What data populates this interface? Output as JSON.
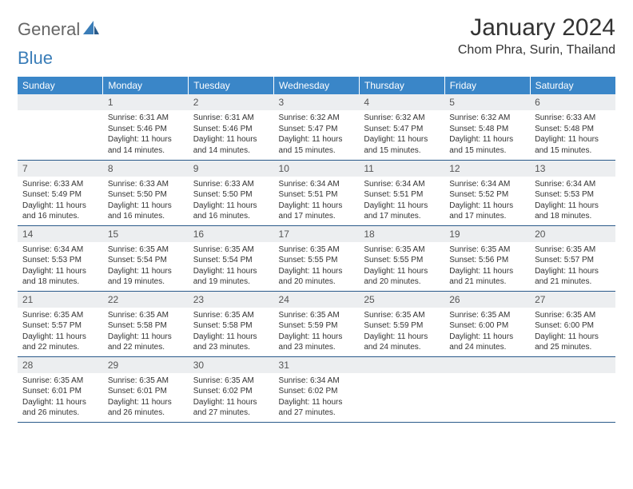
{
  "logo": {
    "general": "General",
    "blue": "Blue"
  },
  "title": "January 2024",
  "location": "Chom Phra, Surin, Thailand",
  "colors": {
    "header_bg": "#3a86c8",
    "header_text": "#ffffff",
    "daynum_bg": "#eceef0",
    "border": "#2a5a8a",
    "logo_blue": "#3a7db8"
  },
  "weekdays": [
    "Sunday",
    "Monday",
    "Tuesday",
    "Wednesday",
    "Thursday",
    "Friday",
    "Saturday"
  ],
  "weeks": [
    [
      null,
      {
        "n": "1",
        "sunrise": "Sunrise: 6:31 AM",
        "sunset": "Sunset: 5:46 PM",
        "daylight": "Daylight: 11 hours and 14 minutes."
      },
      {
        "n": "2",
        "sunrise": "Sunrise: 6:31 AM",
        "sunset": "Sunset: 5:46 PM",
        "daylight": "Daylight: 11 hours and 14 minutes."
      },
      {
        "n": "3",
        "sunrise": "Sunrise: 6:32 AM",
        "sunset": "Sunset: 5:47 PM",
        "daylight": "Daylight: 11 hours and 15 minutes."
      },
      {
        "n": "4",
        "sunrise": "Sunrise: 6:32 AM",
        "sunset": "Sunset: 5:47 PM",
        "daylight": "Daylight: 11 hours and 15 minutes."
      },
      {
        "n": "5",
        "sunrise": "Sunrise: 6:32 AM",
        "sunset": "Sunset: 5:48 PM",
        "daylight": "Daylight: 11 hours and 15 minutes."
      },
      {
        "n": "6",
        "sunrise": "Sunrise: 6:33 AM",
        "sunset": "Sunset: 5:48 PM",
        "daylight": "Daylight: 11 hours and 15 minutes."
      }
    ],
    [
      {
        "n": "7",
        "sunrise": "Sunrise: 6:33 AM",
        "sunset": "Sunset: 5:49 PM",
        "daylight": "Daylight: 11 hours and 16 minutes."
      },
      {
        "n": "8",
        "sunrise": "Sunrise: 6:33 AM",
        "sunset": "Sunset: 5:50 PM",
        "daylight": "Daylight: 11 hours and 16 minutes."
      },
      {
        "n": "9",
        "sunrise": "Sunrise: 6:33 AM",
        "sunset": "Sunset: 5:50 PM",
        "daylight": "Daylight: 11 hours and 16 minutes."
      },
      {
        "n": "10",
        "sunrise": "Sunrise: 6:34 AM",
        "sunset": "Sunset: 5:51 PM",
        "daylight": "Daylight: 11 hours and 17 minutes."
      },
      {
        "n": "11",
        "sunrise": "Sunrise: 6:34 AM",
        "sunset": "Sunset: 5:51 PM",
        "daylight": "Daylight: 11 hours and 17 minutes."
      },
      {
        "n": "12",
        "sunrise": "Sunrise: 6:34 AM",
        "sunset": "Sunset: 5:52 PM",
        "daylight": "Daylight: 11 hours and 17 minutes."
      },
      {
        "n": "13",
        "sunrise": "Sunrise: 6:34 AM",
        "sunset": "Sunset: 5:53 PM",
        "daylight": "Daylight: 11 hours and 18 minutes."
      }
    ],
    [
      {
        "n": "14",
        "sunrise": "Sunrise: 6:34 AM",
        "sunset": "Sunset: 5:53 PM",
        "daylight": "Daylight: 11 hours and 18 minutes."
      },
      {
        "n": "15",
        "sunrise": "Sunrise: 6:35 AM",
        "sunset": "Sunset: 5:54 PM",
        "daylight": "Daylight: 11 hours and 19 minutes."
      },
      {
        "n": "16",
        "sunrise": "Sunrise: 6:35 AM",
        "sunset": "Sunset: 5:54 PM",
        "daylight": "Daylight: 11 hours and 19 minutes."
      },
      {
        "n": "17",
        "sunrise": "Sunrise: 6:35 AM",
        "sunset": "Sunset: 5:55 PM",
        "daylight": "Daylight: 11 hours and 20 minutes."
      },
      {
        "n": "18",
        "sunrise": "Sunrise: 6:35 AM",
        "sunset": "Sunset: 5:55 PM",
        "daylight": "Daylight: 11 hours and 20 minutes."
      },
      {
        "n": "19",
        "sunrise": "Sunrise: 6:35 AM",
        "sunset": "Sunset: 5:56 PM",
        "daylight": "Daylight: 11 hours and 21 minutes."
      },
      {
        "n": "20",
        "sunrise": "Sunrise: 6:35 AM",
        "sunset": "Sunset: 5:57 PM",
        "daylight": "Daylight: 11 hours and 21 minutes."
      }
    ],
    [
      {
        "n": "21",
        "sunrise": "Sunrise: 6:35 AM",
        "sunset": "Sunset: 5:57 PM",
        "daylight": "Daylight: 11 hours and 22 minutes."
      },
      {
        "n": "22",
        "sunrise": "Sunrise: 6:35 AM",
        "sunset": "Sunset: 5:58 PM",
        "daylight": "Daylight: 11 hours and 22 minutes."
      },
      {
        "n": "23",
        "sunrise": "Sunrise: 6:35 AM",
        "sunset": "Sunset: 5:58 PM",
        "daylight": "Daylight: 11 hours and 23 minutes."
      },
      {
        "n": "24",
        "sunrise": "Sunrise: 6:35 AM",
        "sunset": "Sunset: 5:59 PM",
        "daylight": "Daylight: 11 hours and 23 minutes."
      },
      {
        "n": "25",
        "sunrise": "Sunrise: 6:35 AM",
        "sunset": "Sunset: 5:59 PM",
        "daylight": "Daylight: 11 hours and 24 minutes."
      },
      {
        "n": "26",
        "sunrise": "Sunrise: 6:35 AM",
        "sunset": "Sunset: 6:00 PM",
        "daylight": "Daylight: 11 hours and 24 minutes."
      },
      {
        "n": "27",
        "sunrise": "Sunrise: 6:35 AM",
        "sunset": "Sunset: 6:00 PM",
        "daylight": "Daylight: 11 hours and 25 minutes."
      }
    ],
    [
      {
        "n": "28",
        "sunrise": "Sunrise: 6:35 AM",
        "sunset": "Sunset: 6:01 PM",
        "daylight": "Daylight: 11 hours and 26 minutes."
      },
      {
        "n": "29",
        "sunrise": "Sunrise: 6:35 AM",
        "sunset": "Sunset: 6:01 PM",
        "daylight": "Daylight: 11 hours and 26 minutes."
      },
      {
        "n": "30",
        "sunrise": "Sunrise: 6:35 AM",
        "sunset": "Sunset: 6:02 PM",
        "daylight": "Daylight: 11 hours and 27 minutes."
      },
      {
        "n": "31",
        "sunrise": "Sunrise: 6:34 AM",
        "sunset": "Sunset: 6:02 PM",
        "daylight": "Daylight: 11 hours and 27 minutes."
      },
      null,
      null,
      null
    ]
  ]
}
